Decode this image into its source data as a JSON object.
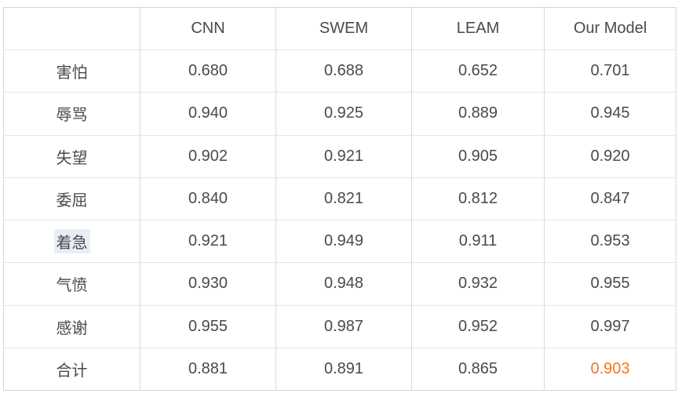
{
  "colors": {
    "accent_orange": "#f87618",
    "selection_highlight": "#e9eef6",
    "text": "#4a4a4d",
    "border_vertical": "#d9d9d9",
    "border_horizontal": "#e6e6e6",
    "background": "#ffffff"
  },
  "table": {
    "columns": [
      "",
      "CNN",
      "SWEM",
      "LEAM",
      "Our Model"
    ],
    "rows": [
      {
        "label": "害怕",
        "values": [
          "0.680",
          "0.688",
          "0.652",
          "0.701"
        ]
      },
      {
        "label": "辱骂",
        "values": [
          "0.940",
          "0.925",
          "0.889",
          "0.945"
        ]
      },
      {
        "label": "失望",
        "values": [
          "0.902",
          "0.921",
          "0.905",
          "0.920"
        ]
      },
      {
        "label": "委屈",
        "values": [
          "0.840",
          "0.821",
          "0.812",
          "0.847"
        ]
      },
      {
        "label": "着急",
        "values": [
          "0.921",
          "0.949",
          "0.911",
          "0.953"
        ]
      },
      {
        "label": "气愤",
        "values": [
          "0.930",
          "0.948",
          "0.932",
          "0.955"
        ]
      },
      {
        "label": "感谢",
        "values": [
          "0.955",
          "0.987",
          "0.952",
          "0.997"
        ]
      },
      {
        "label": "合计",
        "values": [
          "0.881",
          "0.891",
          "0.865",
          "0.903"
        ]
      }
    ]
  },
  "chart_data": {
    "type": "table",
    "title": "",
    "columns": [
      "",
      "CNN",
      "SWEM",
      "LEAM",
      "Our Model"
    ],
    "categories": [
      "害怕",
      "辱骂",
      "失望",
      "委屈",
      "着急",
      "气愤",
      "感谢",
      "合计"
    ],
    "series": [
      {
        "name": "CNN",
        "values": [
          0.68,
          0.94,
          0.902,
          0.84,
          0.921,
          0.93,
          0.955,
          0.881
        ]
      },
      {
        "name": "SWEM",
        "values": [
          0.688,
          0.925,
          0.921,
          0.821,
          0.949,
          0.948,
          0.987,
          0.891
        ]
      },
      {
        "name": "LEAM",
        "values": [
          0.652,
          0.889,
          0.905,
          0.812,
          0.911,
          0.932,
          0.952,
          0.865
        ]
      },
      {
        "name": "Our Model",
        "values": [
          0.701,
          0.945,
          0.92,
          0.847,
          0.953,
          0.955,
          0.997,
          0.903
        ]
      }
    ],
    "annotations": [
      "Row label 着急 shown with light blue text-selection highlight",
      "合计 row value 0.903 under Our Model rendered in orange accent color"
    ],
    "grid": true,
    "legend_position": "none"
  }
}
